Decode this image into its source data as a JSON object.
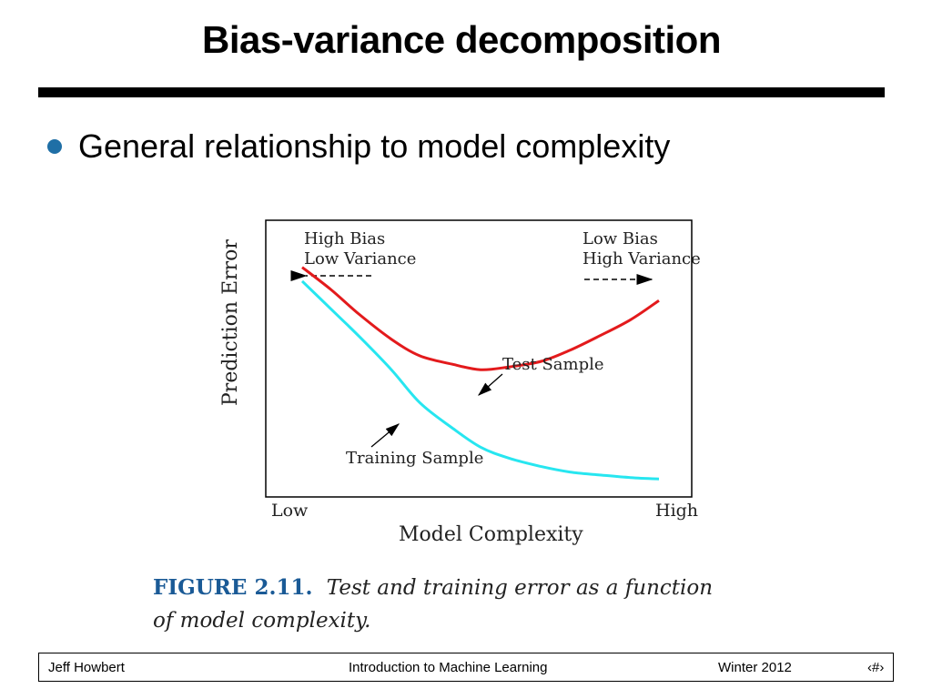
{
  "slide": {
    "title": "Bias-variance decomposition",
    "bullet": "General relationship to model complexity"
  },
  "figure": {
    "ylabel": "Prediction Error",
    "xlabel": "Model Complexity",
    "x_low": "Low",
    "x_high": "High",
    "left_note_line1": "High Bias",
    "left_note_line2": "Low Variance",
    "right_note_line1": "Low Bias",
    "right_note_line2": "High Variance",
    "test_label": "Test Sample",
    "training_label": "Training Sample",
    "caption_label": "FIGURE 2.11.",
    "caption_text_1": "Test and training error as a function",
    "caption_text_2": "of model complexity."
  },
  "colors": {
    "test": "#e31a1c",
    "training": "#27e6f0",
    "bullet": "#1f6fa6",
    "caption_label": "#1a5a96"
  },
  "chart_data": {
    "type": "line",
    "xlabel": "Model Complexity",
    "ylabel": "Prediction Error",
    "x": [
      0.0,
      0.08,
      0.16,
      0.25,
      0.33,
      0.42,
      0.5,
      0.58,
      0.67,
      0.75,
      0.83,
      0.92,
      1.0
    ],
    "series": [
      {
        "name": "Test Sample",
        "values": [
          0.83,
          0.75,
          0.66,
          0.57,
          0.51,
          0.48,
          0.46,
          0.47,
          0.49,
          0.53,
          0.58,
          0.64,
          0.71
        ]
      },
      {
        "name": "Training Sample",
        "values": [
          0.78,
          0.68,
          0.58,
          0.46,
          0.34,
          0.25,
          0.18,
          0.14,
          0.11,
          0.09,
          0.08,
          0.07,
          0.065
        ]
      }
    ],
    "xlim": [
      0,
      1
    ],
    "ylim": [
      0,
      1
    ],
    "grid": false
  },
  "footer": {
    "author": "Jeff Howbert",
    "course": "Introduction to Machine Learning",
    "term": "Winter 2012",
    "page": "‹#›"
  }
}
